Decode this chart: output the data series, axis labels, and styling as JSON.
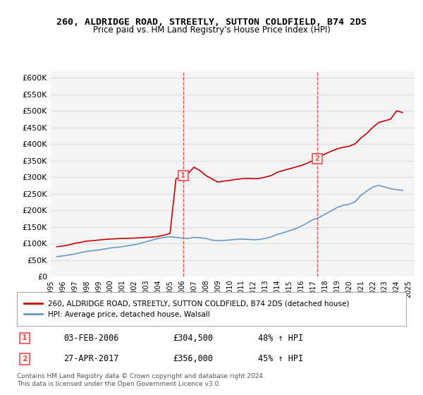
{
  "title": "260, ALDRIDGE ROAD, STREETLY, SUTTON COLDFIELD, B74 2DS",
  "subtitle": "Price paid vs. HM Land Registry's House Price Index (HPI)",
  "xlabel": "",
  "ylabel": "",
  "ylim": [
    0,
    620000
  ],
  "yticks": [
    0,
    50000,
    100000,
    150000,
    200000,
    250000,
    300000,
    350000,
    400000,
    450000,
    500000,
    550000,
    600000
  ],
  "ytick_labels": [
    "£0",
    "£50K",
    "£100K",
    "£150K",
    "£200K",
    "£250K",
    "£300K",
    "£350K",
    "£400K",
    "£450K",
    "£500K",
    "£550K",
    "£600K"
  ],
  "xlim_start": 1995.5,
  "xlim_end": 2025.5,
  "red_line_color": "#cc0000",
  "blue_line_color": "#6699cc",
  "dashed_line_color": "#ff4444",
  "background_color": "#ffffff",
  "plot_bg_color": "#f5f5f5",
  "grid_color": "#dddddd",
  "marker1_x": 2006.09,
  "marker1_y": 304500,
  "marker1_label": "1",
  "marker1_date": "03-FEB-2006",
  "marker1_price": "£304,500",
  "marker1_hpi": "48% ↑ HPI",
  "marker2_x": 2017.32,
  "marker2_y": 356000,
  "marker2_label": "2",
  "marker2_date": "27-APR-2017",
  "marker2_price": "£356,000",
  "marker2_hpi": "45% ↑ HPI",
  "legend_red": "260, ALDRIDGE ROAD, STREETLY, SUTTON COLDFIELD, B74 2DS (detached house)",
  "legend_blue": "HPI: Average price, detached house, Walsall",
  "footer": "Contains HM Land Registry data © Crown copyright and database right 2024.\nThis data is licensed under the Open Government Licence v3.0.",
  "red_x": [
    1995.5,
    1996.0,
    1996.5,
    1997.0,
    1997.5,
    1998.0,
    1998.5,
    1999.0,
    1999.5,
    2000.0,
    2000.5,
    2001.0,
    2001.5,
    2002.0,
    2002.5,
    2003.0,
    2003.5,
    2004.0,
    2004.5,
    2005.0,
    2005.5,
    2006.09,
    2006.5,
    2007.0,
    2007.5,
    2008.0,
    2008.5,
    2009.0,
    2009.5,
    2010.0,
    2010.5,
    2011.0,
    2011.5,
    2012.0,
    2012.5,
    2013.0,
    2013.5,
    2014.0,
    2014.5,
    2015.0,
    2015.5,
    2016.0,
    2016.5,
    2017.32,
    2017.5,
    2018.0,
    2018.5,
    2019.0,
    2019.5,
    2020.0,
    2020.5,
    2021.0,
    2021.5,
    2022.0,
    2022.5,
    2023.0,
    2023.5,
    2024.0,
    2024.5
  ],
  "red_y": [
    90000,
    92000,
    95000,
    100000,
    103000,
    107000,
    108000,
    110000,
    112000,
    113000,
    114000,
    115000,
    115500,
    116000,
    117000,
    118000,
    119000,
    121000,
    125000,
    130000,
    295000,
    304500,
    310000,
    330000,
    320000,
    305000,
    295000,
    285000,
    288000,
    290000,
    293000,
    295000,
    296000,
    295000,
    296000,
    300000,
    305000,
    315000,
    320000,
    325000,
    330000,
    335000,
    342000,
    356000,
    360000,
    370000,
    378000,
    385000,
    390000,
    393000,
    400000,
    418000,
    432000,
    450000,
    465000,
    470000,
    475000,
    500000,
    495000
  ],
  "blue_x": [
    1995.5,
    1996.0,
    1996.5,
    1997.0,
    1997.5,
    1998.0,
    1998.5,
    1999.0,
    1999.5,
    2000.0,
    2000.5,
    2001.0,
    2001.5,
    2002.0,
    2002.5,
    2003.0,
    2003.5,
    2004.0,
    2004.5,
    2005.0,
    2005.5,
    2006.0,
    2006.5,
    2007.0,
    2007.5,
    2008.0,
    2008.5,
    2009.0,
    2009.5,
    2010.0,
    2010.5,
    2011.0,
    2011.5,
    2012.0,
    2012.5,
    2013.0,
    2013.5,
    2014.0,
    2014.5,
    2015.0,
    2015.5,
    2016.0,
    2016.5,
    2017.0,
    2017.5,
    2018.0,
    2018.5,
    2019.0,
    2019.5,
    2020.0,
    2020.5,
    2021.0,
    2021.5,
    2022.0,
    2022.5,
    2023.0,
    2023.5,
    2024.0,
    2024.5
  ],
  "blue_y": [
    60000,
    62000,
    65000,
    68000,
    72000,
    76000,
    78000,
    80000,
    83000,
    86000,
    88000,
    90000,
    93000,
    96000,
    100000,
    105000,
    110000,
    115000,
    118000,
    120000,
    118000,
    116000,
    115000,
    118000,
    117000,
    115000,
    110000,
    108000,
    109000,
    110000,
    112000,
    113000,
    112000,
    111000,
    112000,
    115000,
    120000,
    127000,
    132000,
    138000,
    144000,
    152000,
    162000,
    172000,
    178000,
    188000,
    198000,
    208000,
    215000,
    218000,
    225000,
    245000,
    258000,
    270000,
    275000,
    270000,
    265000,
    262000,
    260000
  ]
}
